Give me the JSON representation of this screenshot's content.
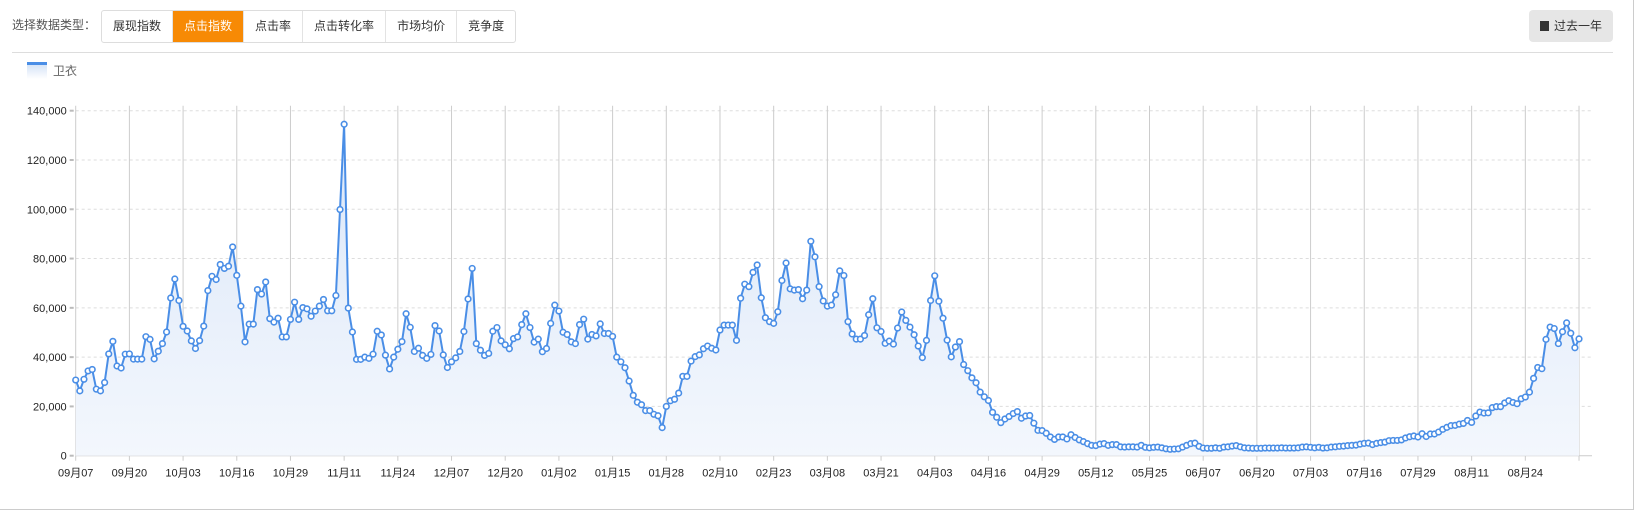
{
  "header": {
    "type_label": "选择数据类型：",
    "tabs": [
      {
        "label": "展现指数",
        "active": false
      },
      {
        "label": "点击指数",
        "active": true
      },
      {
        "label": "点击率",
        "active": false
      },
      {
        "label": "点击转化率",
        "active": false
      },
      {
        "label": "市场均价",
        "active": false
      },
      {
        "label": "竞争度",
        "active": false
      }
    ],
    "period_button": {
      "label": "过去一年",
      "icon": "calendar-icon"
    },
    "accent_color": "#f78a05"
  },
  "chart_data": {
    "type": "area",
    "legend": [
      {
        "name": "卫衣",
        "color": "#4a8ee6"
      }
    ],
    "legend_position": "top-left",
    "grid": true,
    "ylim": [
      0,
      140000
    ],
    "y_ticks": [
      "0",
      "20,000",
      "40,000",
      "60,000",
      "80,000",
      "100,000",
      "120,000",
      "140,000"
    ],
    "x_ticks": [
      "09月07",
      "09月20",
      "10月03",
      "10月16",
      "10月29",
      "11月11",
      "11月24",
      "12月07",
      "12月20",
      "01月02",
      "01月15",
      "01月28",
      "02月10",
      "02月23",
      "03月08",
      "03月21",
      "04月03",
      "04月16",
      "04月29",
      "05月12",
      "05月25",
      "06月07",
      "06月20",
      "07月03",
      "07月16",
      "07月29",
      "08月11",
      "08月24"
    ],
    "series": [
      {
        "name": "卫衣",
        "values": [
          30700,
          26300,
          31000,
          34400,
          35000,
          27000,
          26300,
          29700,
          41300,
          46400,
          36400,
          35600,
          41200,
          41300,
          39200,
          39200,
          39200,
          48300,
          47200,
          39300,
          42400,
          45500,
          50200,
          64000,
          71700,
          63000,
          52500,
          50600,
          46600,
          43500,
          46700,
          52600,
          67000,
          72800,
          71500,
          77600,
          76000,
          76900,
          84700,
          73200,
          60700,
          46200,
          53400,
          53400,
          67400,
          65600,
          70500,
          55600,
          54200,
          55800,
          48200,
          48200,
          55300,
          62300,
          55300,
          60100,
          59600,
          56600,
          58700,
          60700,
          63400,
          58800,
          58800,
          65000,
          99900,
          134500,
          59900,
          50200,
          39100,
          39100,
          40000,
          39500,
          41200,
          50500,
          49000,
          40800,
          35200,
          40000,
          43200,
          46300,
          57600,
          52100,
          42300,
          43600,
          40700,
          39500,
          41100,
          52800,
          50600,
          40900,
          35800,
          38100,
          39700,
          42300,
          50400,
          63600,
          76000,
          45500,
          42800,
          40700,
          41500,
          50500,
          52000,
          46600,
          45000,
          43400,
          47500,
          48200,
          53200,
          57600,
          52000,
          46100,
          47300,
          42200,
          43500,
          53700,
          61100,
          58700,
          50100,
          49200,
          46200,
          45500,
          53200,
          55400,
          47300,
          49200,
          48600,
          53500,
          49600,
          49600,
          48400,
          40000,
          38100,
          35700,
          30300,
          24500,
          21700,
          20700,
          18300,
          18300,
          16800,
          16200,
          11400,
          20000,
          22300,
          22900,
          25400,
          32200,
          32200,
          38400,
          40200,
          40900,
          43400,
          44500,
          43600,
          42900,
          51000,
          53000,
          53000,
          53000,
          46800,
          63900,
          69600,
          68600,
          74400,
          77400,
          64100,
          56000,
          54400,
          53700,
          58400,
          71100,
          78200,
          67700,
          67200,
          67400,
          63700,
          67200,
          87000,
          80700,
          68600,
          62800,
          60700,
          61100,
          65300,
          75000,
          73100,
          54400,
          49400,
          47300,
          47300,
          48800,
          57200,
          63700,
          51900,
          50400,
          45600,
          46500,
          45300,
          51800,
          58300,
          54900,
          52200,
          49100,
          44500,
          39800,
          46800,
          63000,
          73000,
          62700,
          55800,
          46900,
          40100,
          44100,
          46300,
          37000,
          34500,
          31600,
          29600,
          25800,
          23900,
          22400,
          17600,
          15600,
          13400,
          14900,
          15900,
          17100,
          17900,
          15200,
          16100,
          16300,
          13200,
          10300,
          10200,
          9100,
          7600,
          6600,
          7600,
          7600,
          6800,
          8500,
          7400,
          6400,
          5700,
          4900,
          4200,
          4100,
          4700,
          4900,
          4200,
          4500,
          4500,
          3600,
          3500,
          3600,
          3600,
          3500,
          4200,
          3400,
          3200,
          3400,
          3500,
          3200,
          2800,
          2600,
          2700,
          2800,
          3500,
          4200,
          4900,
          5100,
          3800,
          3100,
          3000,
          3000,
          3200,
          3000,
          3500,
          3600,
          3900,
          4100,
          3600,
          3200,
          3100,
          3000,
          3000,
          3000,
          3100,
          3100,
          3100,
          3100,
          3200,
          3100,
          3100,
          3100,
          3200,
          3500,
          3600,
          3400,
          3200,
          3400,
          3100,
          3200,
          3500,
          3600,
          3800,
          3900,
          4100,
          4200,
          4300,
          4700,
          5000,
          5100,
          4500,
          5000,
          5300,
          5500,
          6100,
          6200,
          6200,
          6400,
          7200,
          7700,
          8000,
          7600,
          8900,
          7800,
          8800,
          8800,
          9600,
          10700,
          11500,
          12200,
          12300,
          12800,
          13100,
          14300,
          13500,
          16100,
          17700,
          17300,
          17400,
          19500,
          19900,
          19900,
          21400,
          22300,
          21600,
          21100,
          23100,
          23800,
          25800,
          31400,
          35800,
          35300,
          47200,
          52200,
          51600,
          45500,
          50300,
          53900,
          49700,
          43800,
          47400
        ]
      }
    ]
  }
}
